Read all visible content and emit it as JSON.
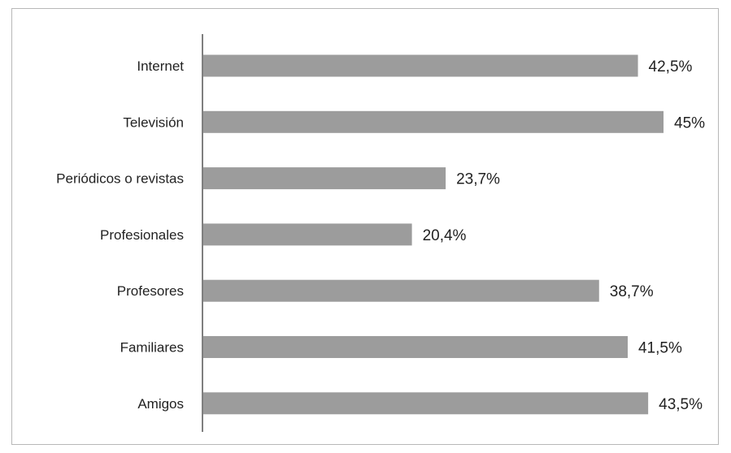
{
  "chart_data": {
    "type": "bar",
    "orientation": "horizontal",
    "categories": [
      "Internet",
      "Televisión",
      "Periódicos o revistas",
      "Profesionales",
      "Profesores",
      "Familiares",
      "Amigos"
    ],
    "values": [
      42.5,
      45,
      23.7,
      20.4,
      38.7,
      41.5,
      43.5
    ],
    "value_labels": [
      "42,5%",
      "45%",
      "23,7%",
      "20,4%",
      "38,7%",
      "41,5%",
      "43,5%"
    ],
    "title": "",
    "xlabel": "",
    "ylabel": "",
    "xlim": [
      0,
      45
    ],
    "grid": false,
    "legend": "none",
    "bar_color": "#9c9c9c",
    "axis_color": "#555555"
  }
}
